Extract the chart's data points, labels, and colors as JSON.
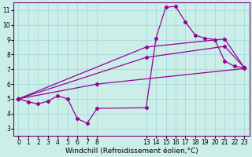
{
  "bg_color": "#cceee8",
  "line_color": "#990099",
  "grid_color": "#aadddd",
  "xlabel": "Windchill (Refroidissement éolien,°C)",
  "ylabel_ticks": [
    3,
    4,
    5,
    6,
    7,
    8,
    9,
    10,
    11
  ],
  "xticks_left": [
    0,
    1,
    2,
    3,
    4,
    5,
    6,
    7,
    8
  ],
  "xticks_right": [
    13,
    14,
    15,
    16,
    17,
    18,
    19,
    20,
    21,
    22,
    23
  ],
  "ylim": [
    2.5,
    11.5
  ],
  "xlim_raw": [
    -0.5,
    23.5
  ],
  "series": [
    {
      "x": [
        0,
        1,
        2,
        3,
        4,
        5,
        6,
        7,
        8,
        13,
        14,
        15,
        16,
        17,
        18,
        19,
        20,
        21,
        22,
        23
      ],
      "y": [
        5.0,
        4.8,
        4.65,
        4.85,
        5.2,
        5.0,
        3.65,
        3.35,
        4.35,
        4.4,
        9.1,
        11.2,
        11.25,
        10.2,
        9.3,
        9.1,
        9.0,
        7.55,
        7.2,
        7.1
      ]
    },
    {
      "x": [
        0,
        8,
        23
      ],
      "y": [
        5.0,
        6.0,
        7.05
      ]
    },
    {
      "x": [
        0,
        13,
        21,
        23
      ],
      "y": [
        5.0,
        7.8,
        8.55,
        7.1
      ]
    },
    {
      "x": [
        0,
        13,
        21,
        23
      ],
      "y": [
        5.0,
        8.5,
        9.05,
        7.1
      ]
    }
  ],
  "spine_color": "#800080",
  "tick_label_color": "#000000",
  "xlabel_color": "#000000",
  "xlabel_fontsize": 6.5,
  "tick_fontsize": 5.5,
  "ylabel_fontsize": 6.0
}
